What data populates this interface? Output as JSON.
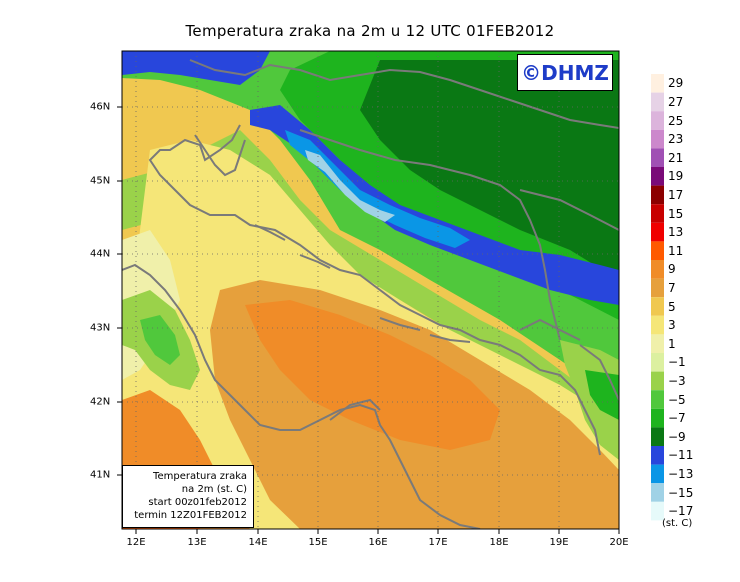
{
  "title": "Temperatura zraka na 2m u 12 UTC 01FEB2012",
  "watermark": "©DHMZ",
  "info_box": {
    "line1": "Temperatura zraka",
    "line2": "na 2m (st. C)",
    "line3": "start 00z01feb2012",
    "line4": "termin 12Z01FEB2012"
  },
  "x_ticks": [
    "12E",
    "13E",
    "14E",
    "15E",
    "16E",
    "17E",
    "18E",
    "19E",
    "20E"
  ],
  "y_ticks": [
    "41N",
    "42N",
    "43N",
    "44N",
    "45N",
    "46N"
  ],
  "legend": {
    "units": "(st. C)",
    "labels": [
      "29",
      "27",
      "25",
      "23",
      "21",
      "19",
      "17",
      "15",
      "13",
      "11",
      "9",
      "7",
      "5",
      "3",
      "1",
      "−1",
      "−3",
      "−5",
      "−7",
      "−9",
      "−11",
      "−13",
      "−15",
      "−17"
    ],
    "colors": [
      "#fff0e0",
      "#e6d2e6",
      "#dcb4dc",
      "#cc88cc",
      "#a050b4",
      "#7a0a78",
      "#8c0000",
      "#c80000",
      "#f00000",
      "#ff5a00",
      "#f08c28",
      "#e6a03c",
      "#f0c850",
      "#f5e678",
      "#f0f0aa",
      "#dcf0a0",
      "#9ad24a",
      "#50c83c",
      "#1eb41e",
      "#0a7814",
      "#2846dc",
      "#0a96e6",
      "#a0d2e6",
      "#e6fafa"
    ]
  },
  "map": {
    "lon_range": [
      11.8,
      20.0
    ],
    "lat_range": [
      40.2,
      46.8
    ],
    "colors": {
      "warm": "#f08c28",
      "mild": "#e6a03c",
      "cool": "#f0c850",
      "sea_light": "#f5e678",
      "coast_pale": "#f0f0aa",
      "green_light": "#9ad24a",
      "green": "#50c83c",
      "green_dark": "#1eb41e",
      "green_deep": "#0a7814",
      "cold_blue": "#2846dc",
      "cyan": "#0a96e6",
      "ice": "#a0d2e6",
      "orange_red": "#ff5a00"
    }
  }
}
